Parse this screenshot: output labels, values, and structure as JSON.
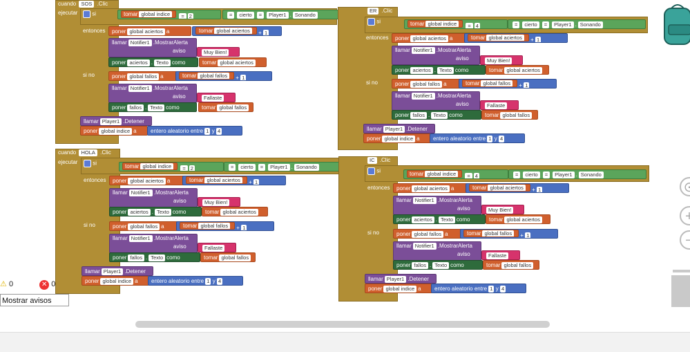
{
  "blocks": [
    {
      "event_label": "cuando",
      "component": "SOS",
      "event": ".Clic",
      "execute": "ejecutar",
      "if_label": "si",
      "compare": {
        "get": "tomar",
        "var": "global indice",
        "op": "=",
        "num": "2",
        "eq": "=",
        "lhs": "cierto",
        "op2": "=",
        "comp": "Player1",
        "prop": "Sonando"
      },
      "then_label": "entonces",
      "set1": {
        "label": "poner",
        "var": "global aciertos",
        "to": "a",
        "get": "tomar",
        "gvar": "global aciertos",
        "plus": "+",
        "one": "1"
      },
      "call1": {
        "label": "llamar",
        "comp": "Notifier1",
        "method": ".MostrarAlerta",
        "param": "aviso",
        "text": "Muy Bien!"
      },
      "set2": {
        "label": "poner",
        "comp": "aciertos",
        "prop": "Texto",
        "as": "como",
        "get": "tomar",
        "gvar": "global aciertos"
      },
      "else_label": "si no",
      "set3": {
        "label": "poner",
        "var": "global fallos",
        "to": "a",
        "get": "tomar",
        "gvar": "global fallos",
        "plus": "+",
        "one": "1"
      },
      "call2": {
        "label": "llamar",
        "comp": "Notifier1",
        "method": ".MostrarAlerta",
        "param": "aviso",
        "text": "Fallaste"
      },
      "set4": {
        "label": "poner",
        "comp": "fallos",
        "prop": "Texto",
        "as": "como",
        "get": "tomar",
        "gvar": "global fallos"
      },
      "stop": {
        "label": "llamar",
        "comp": "Player1",
        "method": ".Detener"
      },
      "rand": {
        "label": "poner",
        "var": "global indice",
        "to": "a",
        "fn": "entero aleatorio entre",
        "a": "1",
        "and": "y",
        "b": "4"
      }
    },
    {
      "event_label": "cuando",
      "component": "ER",
      "event": ".Clic",
      "execute": "ejecutar",
      "if_label": "si",
      "compare": {
        "get": "tomar",
        "var": "global indice",
        "op": "=",
        "num": "4",
        "eq": "=",
        "lhs": "cierto",
        "op2": "=",
        "comp": "Player1",
        "prop": "Sonando"
      },
      "then_label": "entonces",
      "set1": {
        "label": "poner",
        "var": "global aciertos",
        "to": "a",
        "get": "tomar",
        "gvar": "global aciertos",
        "plus": "+",
        "one": "1"
      },
      "call1": {
        "label": "llamar",
        "comp": "Notifier1",
        "method": ".MostrarAlerta",
        "param": "aviso",
        "text": "Muy Bien!"
      },
      "set2": {
        "label": "poner",
        "comp": "aciertos",
        "prop": "Texto",
        "as": "como",
        "get": "tomar",
        "gvar": "global aciertos"
      },
      "else_label": "si no",
      "set3": {
        "label": "poner",
        "var": "global fallos",
        "to": "a",
        "get": "tomar",
        "gvar": "global fallos",
        "plus": "+",
        "one": "1"
      },
      "call2": {
        "label": "llamar",
        "comp": "Notifier1",
        "method": ".MostrarAlerta",
        "param": "aviso",
        "text": "Fallaste"
      },
      "set4": {
        "label": "poner",
        "comp": "fallos",
        "prop": "Texto",
        "as": "como",
        "get": "tomar",
        "gvar": "global fallos"
      },
      "stop": {
        "label": "llamar",
        "comp": "Player1",
        "method": ".Detener"
      },
      "rand": {
        "label": "poner",
        "var": "global indice",
        "to": "a",
        "fn": "entero aleatorio entre",
        "a": "1",
        "and": "y",
        "b": "4"
      }
    },
    {
      "event_label": "cuando",
      "component": "HOLA",
      "event": ".Clic",
      "execute": "ejecutar",
      "if_label": "si",
      "compare": {
        "get": "tomar",
        "var": "global indice",
        "op": "=",
        "num": "2",
        "eq": "=",
        "lhs": "cierto",
        "op2": "=",
        "comp": "Player1",
        "prop": "Sonando"
      },
      "then_label": "entonces",
      "set1": {
        "label": "poner",
        "var": "global aciertos",
        "to": "a",
        "get": "tomar",
        "gvar": "global aciertos",
        "plus": "+",
        "one": "1"
      },
      "call1": {
        "label": "llamar",
        "comp": "Notifier1",
        "method": ".MostrarAlerta",
        "param": "aviso",
        "text": "Muy Bien!"
      },
      "set2": {
        "label": "poner",
        "comp": "aciertos",
        "prop": "Texto",
        "as": "como",
        "get": "tomar",
        "gvar": "global aciertos"
      },
      "else_label": "si no",
      "set3": {
        "label": "poner",
        "var": "global fallos",
        "to": "a",
        "get": "tomar",
        "gvar": "global fallos",
        "plus": "+",
        "one": "1"
      },
      "call2": {
        "label": "llamar",
        "comp": "Notifier1",
        "method": ".MostrarAlerta",
        "param": "aviso",
        "text": "Fallaste"
      },
      "set4": {
        "label": "poner",
        "comp": "fallos",
        "prop": "Texto",
        "as": "como",
        "get": "tomar",
        "gvar": "global fallos"
      },
      "stop": {
        "label": "llamar",
        "comp": "Player1",
        "method": ".Detener"
      },
      "rand": {
        "label": "poner",
        "var": "global indice",
        "to": "a",
        "fn": "entero aleatorio entre",
        "a": "1",
        "and": "y",
        "b": "4"
      }
    },
    {
      "event_label": "cuando",
      "component": "IC",
      "event": ".Clic",
      "execute": "ejecutar",
      "if_label": "si",
      "compare": {
        "get": "tomar",
        "var": "global indice",
        "op": "=",
        "num": "4",
        "eq": "=",
        "lhs": "cierto",
        "op2": "=",
        "comp": "Player1",
        "prop": "Sonando"
      },
      "then_label": "entonces",
      "set1": {
        "label": "poner",
        "var": "global aciertos",
        "to": "a",
        "get": "tomar",
        "gvar": "global aciertos",
        "plus": "+",
        "one": "1"
      },
      "call1": {
        "label": "llamar",
        "comp": "Notifier1",
        "method": ".MostrarAlerta",
        "param": "aviso",
        "text": "Muy Bien!"
      },
      "set2": {
        "label": "poner",
        "comp": "aciertos",
        "prop": "Texto",
        "as": "como",
        "get": "tomar",
        "gvar": "global aciertos"
      },
      "else_label": "si no",
      "set3": {
        "label": "poner",
        "var": "global fallos",
        "to": "a",
        "get": "tomar",
        "gvar": "global fallos",
        "plus": "+",
        "one": "1"
      },
      "call2": {
        "label": "llamar",
        "comp": "Notifier1",
        "method": ".MostrarAlerta",
        "param": "aviso",
        "text": "Fallaste"
      },
      "set4": {
        "label": "poner",
        "comp": "fallos",
        "prop": "Texto",
        "as": "como",
        "get": "tomar",
        "gvar": "global fallos"
      },
      "stop": {
        "label": "llamar",
        "comp": "Player1",
        "method": ".Detener"
      },
      "rand": {
        "label": "poner",
        "var": "global indice",
        "to": "a",
        "fn": "entero aleatorio entre",
        "a": "1",
        "and": "y",
        "b": "4"
      }
    }
  ],
  "warnings": {
    "warn_count": "0",
    "error_count": "0",
    "toggle_label": "Mostrar avisos"
  },
  "tools": {
    "zoom_in": "+",
    "zoom_out": "−",
    "center": "⊙"
  },
  "icons": {
    "backpack": "backpack-icon",
    "trash": "trash-icon",
    "warning": "warning-icon",
    "error": "error-icon"
  },
  "colors": {
    "event": "#b18e35",
    "text_op": "#d05f2d",
    "procedure": "#7b4e98",
    "logic": "#5ba55b",
    "component": "#2e6b3c",
    "math": "#4a6fc1",
    "text": "#d6336c"
  }
}
